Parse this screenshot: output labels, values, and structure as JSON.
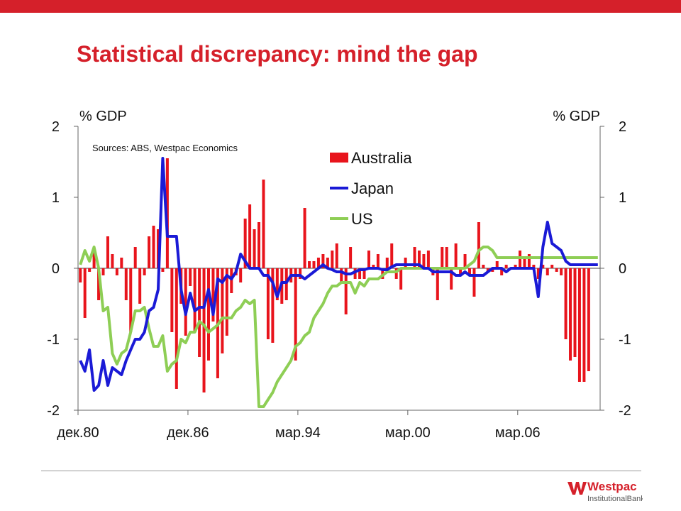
{
  "slide": {
    "title": "Statistical discrepancy: mind the gap",
    "brand_color": "#d5202a",
    "logo": {
      "name": "Westpac",
      "sub": "InstitutionalBank"
    }
  },
  "chart_data": {
    "type": "bar+line",
    "left_axis_label": "% GDP",
    "right_axis_label": "% GDP",
    "source_note": "Sources: ABS, Westpac Economics",
    "ylim": [
      -2,
      2
    ],
    "yticks": [
      "2",
      "1",
      "0",
      "-1",
      "-2"
    ],
    "x_tick_labels": [
      "дек.80",
      "дек.86",
      "мар.94",
      "мар.00",
      "мар.06"
    ],
    "x_tick_positions": [
      0,
      24,
      48,
      72,
      96
    ],
    "x_count": 114,
    "legend_position": "top-center",
    "series": [
      {
        "name": "Australia",
        "kind": "bar",
        "color": "#e8141c",
        "values": [
          -0.2,
          -0.7,
          -0.05,
          0.25,
          -0.45,
          -0.1,
          0.45,
          0.2,
          -0.1,
          0.15,
          -0.45,
          -0.9,
          0.3,
          -0.5,
          -0.1,
          0.45,
          0.6,
          0.55,
          -0.05,
          1.55,
          -0.9,
          -1.7,
          -0.5,
          -0.95,
          -0.25,
          -0.9,
          -1.25,
          -1.75,
          -1.3,
          -0.75,
          -1.55,
          -1.2,
          -0.95,
          -0.35,
          -0.1,
          -0.2,
          0.7,
          0.9,
          0.55,
          0.65,
          1.25,
          -1.0,
          -1.05,
          -0.45,
          -0.5,
          -0.45,
          -0.2,
          -1.3,
          -0.15,
          0.85,
          0.1,
          0.1,
          0.15,
          0.2,
          0.15,
          0.25,
          0.35,
          -0.2,
          -0.65,
          0.3,
          -0.15,
          -0.15,
          -0.15,
          0.25,
          0.05,
          0.2,
          -0.15,
          0.15,
          0.35,
          -0.15,
          -0.3,
          0.15,
          0.0,
          0.3,
          0.25,
          0.2,
          0.25,
          -0.1,
          -0.45,
          0.3,
          0.3,
          -0.3,
          0.35,
          -0.1,
          0.2,
          -0.1,
          -0.4,
          0.65,
          0.05,
          -0.05,
          -0.05,
          0.1,
          -0.1,
          0.05,
          0.0,
          0.05,
          0.25,
          0.15,
          0.2,
          0.05,
          -0.15,
          0.05,
          -0.1,
          0.05,
          -0.05,
          -0.1,
          -1.0,
          -1.3,
          -1.25,
          -1.6,
          -1.6,
          -1.45,
          0.0,
          0.0
        ]
      },
      {
        "name": "Japan",
        "kind": "line",
        "color": "#1a1ad6",
        "values": [
          -1.3,
          -1.45,
          -1.15,
          -1.72,
          -1.65,
          -1.3,
          -1.65,
          -1.4,
          -1.45,
          -1.5,
          -1.3,
          -1.15,
          -1.0,
          -1.0,
          -0.9,
          -0.6,
          -0.55,
          -0.3,
          1.55,
          0.45,
          0.45,
          0.45,
          -0.3,
          -0.65,
          -0.35,
          -0.6,
          -0.55,
          -0.55,
          -0.3,
          -0.65,
          -0.15,
          -0.2,
          -0.1,
          -0.15,
          -0.05,
          0.2,
          0.1,
          0.0,
          0.0,
          0.0,
          -0.1,
          -0.1,
          -0.2,
          -0.4,
          -0.2,
          -0.2,
          -0.1,
          -0.1,
          -0.1,
          -0.15,
          -0.1,
          -0.05,
          0.0,
          0.05,
          0.0,
          -0.02,
          -0.05,
          -0.05,
          -0.08,
          -0.08,
          -0.05,
          -0.02,
          -0.02,
          0.0,
          0.0,
          0.0,
          -0.02,
          -0.02,
          0.02,
          0.05,
          0.05,
          0.05,
          0.05,
          0.05,
          0.05,
          0.0,
          0.0,
          -0.05,
          -0.05,
          -0.05,
          -0.05,
          -0.05,
          -0.1,
          -0.1,
          -0.05,
          -0.1,
          -0.1,
          -0.1,
          -0.1,
          -0.05,
          0.0,
          0.0,
          0.0,
          -0.05,
          0.0,
          0.0,
          0.0,
          0.0,
          0.0,
          0.0,
          -0.4,
          0.3,
          0.65,
          0.35,
          0.3,
          0.25,
          0.1,
          0.05,
          0.05,
          0.05,
          0.05,
          0.05,
          0.05,
          0.05
        ]
      },
      {
        "name": "US",
        "kind": "line",
        "color": "#8ece55",
        "values": [
          0.05,
          0.25,
          0.1,
          0.3,
          0.0,
          -0.6,
          -0.55,
          -1.2,
          -1.35,
          -1.2,
          -1.15,
          -0.9,
          -0.6,
          -0.6,
          -0.55,
          -0.85,
          -1.1,
          -1.1,
          -0.95,
          -1.45,
          -1.35,
          -1.3,
          -1.0,
          -1.05,
          -0.9,
          -0.9,
          -0.75,
          -0.8,
          -0.9,
          -0.85,
          -0.8,
          -0.7,
          -0.7,
          -0.7,
          -0.6,
          -0.55,
          -0.45,
          -0.5,
          -0.45,
          -1.95,
          -1.95,
          -1.85,
          -1.75,
          -1.6,
          -1.5,
          -1.4,
          -1.3,
          -1.1,
          -1.05,
          -0.95,
          -0.9,
          -0.7,
          -0.6,
          -0.5,
          -0.35,
          -0.25,
          -0.25,
          -0.2,
          -0.2,
          -0.2,
          -0.35,
          -0.2,
          -0.25,
          -0.15,
          -0.15,
          -0.15,
          -0.1,
          -0.05,
          -0.05,
          -0.05,
          0.0,
          0.0,
          0.0,
          0.0,
          0.0,
          0.0,
          0.0,
          0.0,
          0.0,
          0.0,
          0.0,
          0.0,
          0.0,
          0.0,
          0.0,
          0.05,
          0.1,
          0.25,
          0.3,
          0.3,
          0.25,
          0.15,
          0.15,
          0.15,
          0.15,
          0.15,
          0.15,
          0.15,
          0.15,
          0.15,
          0.15,
          0.15,
          0.15,
          0.15,
          0.15,
          0.15,
          0.15,
          0.15,
          0.15,
          0.15,
          0.15,
          0.15,
          0.15,
          0.15
        ]
      }
    ]
  }
}
